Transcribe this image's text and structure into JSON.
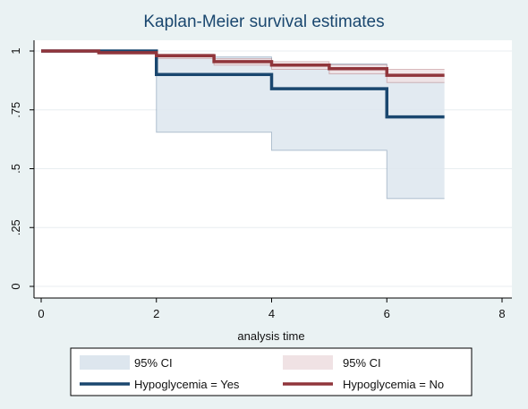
{
  "chart_data": {
    "type": "line",
    "subtype": "step",
    "title": "Kaplan-Meier survival estimates",
    "xlabel": "analysis time",
    "ylabel": "",
    "xlim": [
      0,
      8
    ],
    "ylim": [
      0,
      1
    ],
    "x_ticks": [
      0,
      2,
      4,
      6,
      8
    ],
    "y_ticks": [
      0,
      0.25,
      0.5,
      0.75,
      1
    ],
    "x_tick_labels": [
      "0",
      "2",
      "4",
      "6",
      "8"
    ],
    "y_tick_labels": [
      "0",
      ".25",
      ".5",
      ".75",
      "1"
    ],
    "grid": "horizontal",
    "legend_position": "bottom",
    "series": [
      {
        "name": "Hypoglycemia = Yes",
        "color": "#1a476f",
        "ci_color": "#dde6ee",
        "ci_label": "95% CI",
        "steps": [
          {
            "x": 0,
            "y": 1.0,
            "lower": 1.0,
            "upper": 1.0
          },
          {
            "x": 2,
            "y": 0.9,
            "lower": 0.655,
            "upper": 0.975
          },
          {
            "x": 4,
            "y": 0.84,
            "lower": 0.578,
            "upper": 0.945
          },
          {
            "x": 6,
            "y": 0.72,
            "lower": 0.373,
            "upper": 0.895
          },
          {
            "x": 7,
            "y": 0.72,
            "lower": 0.373,
            "upper": 0.895
          }
        ]
      },
      {
        "name": "Hypoglycemia = No",
        "color": "#90353b",
        "ci_color": "#f0e2e4",
        "ci_label": "95% CI",
        "steps": [
          {
            "x": 0,
            "y": 1.0,
            "lower": 1.0,
            "upper": 1.0
          },
          {
            "x": 1,
            "y": 0.993,
            "lower": 0.987,
            "upper": 0.997
          },
          {
            "x": 2,
            "y": 0.98,
            "lower": 0.968,
            "upper": 0.987
          },
          {
            "x": 3,
            "y": 0.955,
            "lower": 0.94,
            "upper": 0.967
          },
          {
            "x": 4,
            "y": 0.94,
            "lower": 0.922,
            "upper": 0.955
          },
          {
            "x": 5,
            "y": 0.925,
            "lower": 0.903,
            "upper": 0.942
          },
          {
            "x": 6,
            "y": 0.897,
            "lower": 0.866,
            "upper": 0.922
          },
          {
            "x": 7,
            "y": 0.897,
            "lower": 0.866,
            "upper": 0.922
          }
        ]
      }
    ]
  }
}
